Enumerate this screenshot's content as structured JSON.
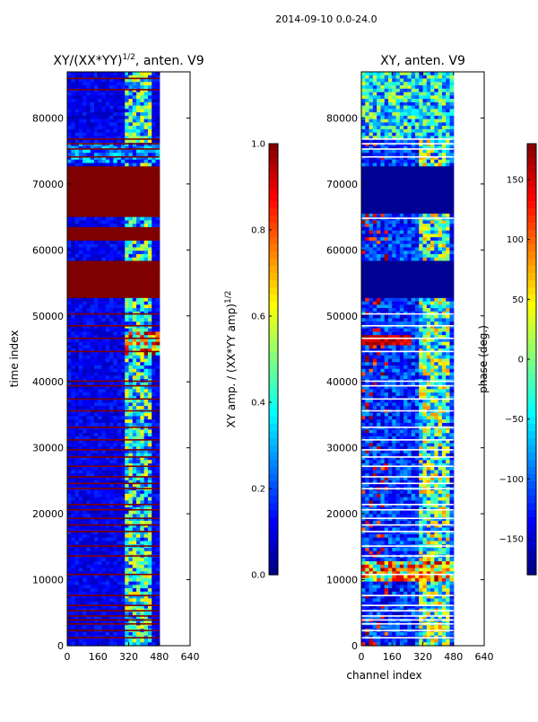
{
  "figure_title": "2014-09-10 0.0-24.0",
  "colors": {
    "jet": [
      "#00007f",
      "#0000ff",
      "#007fff",
      "#00ffff",
      "#7fff7f",
      "#ffff00",
      "#ff7f00",
      "#ff0000",
      "#7f0000"
    ],
    "axis": "#000000",
    "background": "#ffffff"
  },
  "chart_data": [
    {
      "type": "heatmap",
      "title_main": "XY/(XX*YY)",
      "title_sup": "1/2",
      "title_suffix": ", anten. V9",
      "xlabel": "",
      "ylabel": "time index",
      "xlim": [
        0,
        640
      ],
      "ylim": [
        0,
        87000
      ],
      "data_xmax": 480,
      "xticks": [
        "0",
        "160",
        "320",
        "480",
        "640"
      ],
      "xtick_values": [
        0,
        160,
        320,
        480,
        640
      ],
      "yticks": [
        "0",
        "10000",
        "20000",
        "30000",
        "40000",
        "50000",
        "60000",
        "70000",
        "80000"
      ],
      "ytick_values": [
        0,
        10000,
        20000,
        30000,
        40000,
        50000,
        60000,
        70000,
        80000
      ],
      "colorbar": {
        "label_main": "XY amp. / (XX*YY amp)",
        "label_sup": "1/2",
        "range": [
          0.0,
          1.0
        ],
        "ticks": [
          "0.0",
          "0.2",
          "0.4",
          "0.6",
          "0.8",
          "1.0"
        ],
        "tick_values": [
          0.0,
          0.2,
          0.4,
          0.6,
          0.8,
          1.0
        ]
      },
      "saturated_bands": [
        [
          52800,
          58500
        ],
        [
          61600,
          63600
        ],
        [
          65000,
          72500
        ]
      ],
      "line_rows": [
        1200,
        2300,
        3300,
        3900,
        4500,
        5300,
        6100,
        7600,
        10800,
        13600,
        15100,
        17300,
        18300,
        19300,
        20600,
        21400,
        23800,
        24600,
        25600,
        27200,
        28600,
        29700,
        31200,
        33100,
        35600,
        37400,
        39400,
        40100,
        44600,
        46600,
        48500,
        50300,
        74100,
        75300,
        76100,
        76800,
        84300,
        86000
      ]
    },
    {
      "type": "heatmap",
      "title_main": "XY, anten. V9",
      "xlabel": "channel index",
      "ylabel": "",
      "xlim": [
        0,
        640
      ],
      "ylim": [
        0,
        87000
      ],
      "data_xmax": 480,
      "xticks": [
        "0",
        "160",
        "320",
        "480",
        "640"
      ],
      "xtick_values": [
        0,
        160,
        320,
        480,
        640
      ],
      "yticks": [
        "0",
        "10000",
        "20000",
        "30000",
        "40000",
        "50000",
        "60000",
        "70000",
        "80000"
      ],
      "ytick_values": [
        0,
        10000,
        20000,
        30000,
        40000,
        50000,
        60000,
        70000,
        80000
      ],
      "colorbar": {
        "label_main": "phase (deg.)",
        "range": [
          -180,
          180
        ],
        "ticks": [
          "−150",
          "−100",
          "−50",
          "0",
          "50",
          "100",
          "150"
        ],
        "tick_values": [
          -150,
          -100,
          -50,
          0,
          50,
          100,
          150
        ]
      },
      "dark_bands": [
        [
          52800,
          58500
        ],
        [
          65500,
          72500
        ]
      ],
      "line_rows": [
        1200,
        2300,
        3300,
        3900,
        4500,
        5300,
        6100,
        7600,
        10800,
        13600,
        15100,
        17300,
        18300,
        19300,
        20600,
        21400,
        23800,
        24600,
        25600,
        27200,
        28600,
        29700,
        31200,
        33100,
        35600,
        37400,
        39400,
        40100,
        44600,
        46600,
        48500,
        50300,
        64800,
        74100,
        75300,
        76100,
        76800
      ]
    }
  ]
}
